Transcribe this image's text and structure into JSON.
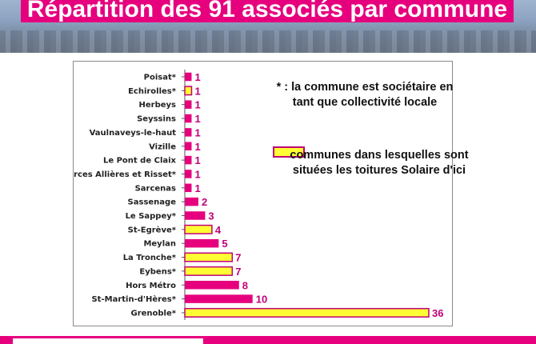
{
  "title": "Répartition des 91 associés par commune",
  "notes": {
    "asterisk": "* : la commune est sociétaire en tant que collectivité locale",
    "legend": "communes dans lesquelles sont situées les toitures Solaire d'ici"
  },
  "colors": {
    "magenta": "#e6007e",
    "bar_default": "#e6007e",
    "bar_highlight": "#ffff33",
    "bar_highlight_border": "#c0007a",
    "value_label": "#c0007a"
  },
  "chart_data": {
    "type": "bar",
    "orientation": "horizontal",
    "categories": [
      "Poisat*",
      "Echirolles*",
      "Herbeys",
      "Seyssins",
      "Vaulnaveys-le-haut",
      "Vizille",
      "Le Pont de Claix",
      "Varces Allières et Risset*",
      "Sarcenas",
      "Sassenage",
      "Le Sappey*",
      "St-Egrève*",
      "Meylan",
      "La Tronche*",
      "Eybens*",
      "Hors Métro",
      "St-Martin-d'Hères*",
      "Grenoble*"
    ],
    "values": [
      1,
      1,
      1,
      1,
      1,
      1,
      1,
      1,
      1,
      2,
      3,
      4,
      5,
      7,
      7,
      8,
      10,
      36
    ],
    "highlighted": [
      false,
      true,
      false,
      false,
      false,
      false,
      false,
      false,
      false,
      false,
      false,
      true,
      false,
      true,
      true,
      false,
      false,
      true
    ],
    "xlim": [
      0,
      36
    ],
    "grid": false,
    "legend": "right"
  }
}
